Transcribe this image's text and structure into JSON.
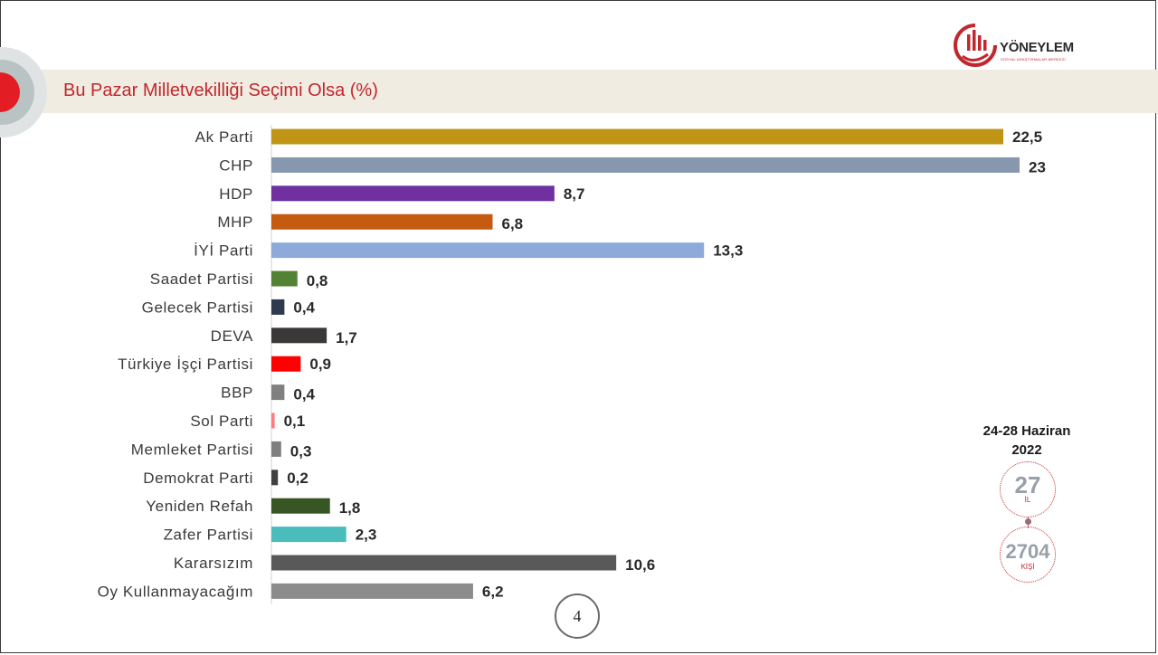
{
  "brand": {
    "name": "YÖNEYLEM",
    "tagline": "SOSYAL ARAŞTIRMALAR MERKEZİ",
    "accent_color": "#c0282d"
  },
  "header": {
    "title": "Bu Pazar Milletvekilliği Seçimi Olsa (%)"
  },
  "survey_info": {
    "date_line1": "24-28 Haziran",
    "date_line2": "2022",
    "provinces_value": "27",
    "provinces_unit": "İL",
    "respondents_value": "2704",
    "respondents_unit": "KİŞİ"
  },
  "page_number": "4",
  "chart_data": {
    "type": "bar",
    "orientation": "horizontal",
    "title": "Bu Pazar Milletvekilliği Seçimi Olsa (%)",
    "categories": [
      "Ak Parti",
      "CHP",
      "HDP",
      "MHP",
      "İYİ Parti",
      "Saadet Partisi",
      "Gelecek Partisi",
      "DEVA",
      "Türkiye İşçi Partisi",
      "BBP",
      "Sol Parti",
      "Memleket Partisi",
      "Demokrat Parti",
      "Yeniden Refah",
      "Zafer Partisi",
      "Kararsızım",
      "Oy Kullanmayacağım"
    ],
    "values": [
      22.5,
      23,
      8.7,
      6.8,
      13.3,
      0.8,
      0.4,
      1.7,
      0.9,
      0.4,
      0.1,
      0.3,
      0.2,
      1.8,
      2.3,
      10.6,
      6.2
    ],
    "value_labels": [
      "22,5",
      "23",
      "8,7",
      "6,8",
      "13,3",
      "0,8",
      "0,4",
      "1,7",
      "0,9",
      "0,4",
      "0,1",
      "0,3",
      "0,2",
      "1,8",
      "2,3",
      "10,6",
      "6,2"
    ],
    "colors": [
      "#c09414",
      "#8797ae",
      "#7030a0",
      "#c55a11",
      "#8eaadb",
      "#548235",
      "#2e3b4e",
      "#3b3838",
      "#ff0000",
      "#808080",
      "#ff7c80",
      "#7f7f7f",
      "#404040",
      "#375623",
      "#4bbcbc",
      "#595959",
      "#8c8c8c"
    ],
    "xlim": [
      0,
      23
    ]
  }
}
